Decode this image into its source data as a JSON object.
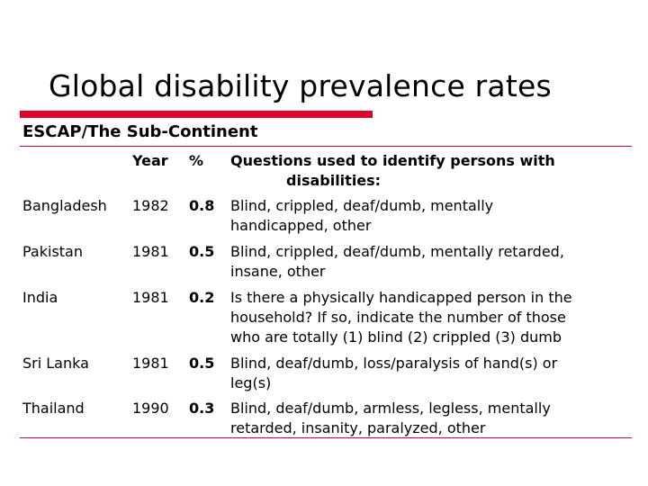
{
  "slide": {
    "title": "Global disability prevalence rates",
    "subtitle": "ESCAP/The Sub-Continent",
    "colors": {
      "accent": "#e0002a",
      "rule": "#c8102e",
      "text": "#000000"
    }
  },
  "table": {
    "headers": {
      "country": "",
      "year": "Year",
      "pct": "%",
      "questions": [
        "Questions used to identify persons with",
        "disabilities:"
      ]
    },
    "rows": [
      {
        "country": "Bangladesh",
        "year": "1982",
        "pct": "0.8",
        "questions": [
          "Blind, crippled, deaf/dumb, mentally",
          "handicapped, other"
        ]
      },
      {
        "country": "Pakistan",
        "year": "1981",
        "pct": "0.5",
        "questions": [
          "Blind, crippled, deaf/dumb, mentally retarded,",
          "insane, other"
        ]
      },
      {
        "country": "India",
        "year": "1981",
        "pct": "0.2",
        "questions": [
          "Is there a physically handicapped person in the",
          "household? If so, indicate the number of those",
          "who are totally (1) blind (2) crippled (3) dumb"
        ]
      },
      {
        "country": "Sri Lanka",
        "year": "1981",
        "pct": "0.5",
        "questions": [
          "Blind, deaf/dumb, loss/paralysis of hand(s) or",
          "leg(s)"
        ]
      },
      {
        "country": "Thailand",
        "year": "1990",
        "pct": "0.3",
        "questions": [
          "Blind, deaf/dumb, armless, legless, mentally",
          "retarded, insanity, paralyzed, other"
        ]
      }
    ]
  }
}
